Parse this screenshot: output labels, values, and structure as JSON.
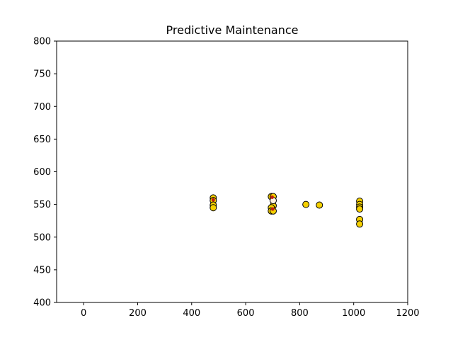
{
  "chart_data": {
    "type": "scatter",
    "title": "Predictive Maintenance",
    "xlabel": "",
    "ylabel": "",
    "xlim": [
      -100,
      1200
    ],
    "ylim": [
      400,
      800
    ],
    "xticks": [
      0,
      200,
      400,
      600,
      800,
      1000,
      1200
    ],
    "yticks": [
      400,
      450,
      500,
      550,
      600,
      650,
      700,
      750,
      800
    ],
    "grid": false,
    "legend": "none",
    "colors": {
      "normal_fill": "#f5d000",
      "highlight_fill": "#c02010",
      "light_fill": "#fff4e0",
      "edge": "#000000"
    },
    "series": [
      {
        "points": [
          {
            "x": 480,
            "y": 560,
            "kind": "normal"
          },
          {
            "x": 480,
            "y": 556,
            "kind": "normal"
          },
          {
            "x": 480,
            "y": 549,
            "kind": "normal"
          },
          {
            "x": 480,
            "y": 545,
            "kind": "normal"
          },
          {
            "x": 480,
            "y": 557,
            "kind": "highlight"
          },
          {
            "x": 695,
            "y": 562,
            "kind": "normal"
          },
          {
            "x": 702,
            "y": 562,
            "kind": "normal"
          },
          {
            "x": 702,
            "y": 556,
            "kind": "light"
          },
          {
            "x": 702,
            "y": 548,
            "kind": "normal"
          },
          {
            "x": 695,
            "y": 545,
            "kind": "normal"
          },
          {
            "x": 695,
            "y": 540,
            "kind": "normal"
          },
          {
            "x": 702,
            "y": 540,
            "kind": "normal"
          },
          {
            "x": 698,
            "y": 561,
            "kind": "highlight"
          },
          {
            "x": 700,
            "y": 543,
            "kind": "highlight"
          },
          {
            "x": 823,
            "y": 550,
            "kind": "normal"
          },
          {
            "x": 873,
            "y": 549,
            "kind": "normal"
          },
          {
            "x": 1022,
            "y": 555,
            "kind": "normal"
          },
          {
            "x": 1022,
            "y": 550,
            "kind": "normal"
          },
          {
            "x": 1022,
            "y": 546,
            "kind": "normal"
          },
          {
            "x": 1022,
            "y": 543,
            "kind": "normal"
          },
          {
            "x": 1022,
            "y": 527,
            "kind": "normal"
          },
          {
            "x": 1022,
            "y": 520,
            "kind": "normal"
          }
        ]
      }
    ]
  }
}
